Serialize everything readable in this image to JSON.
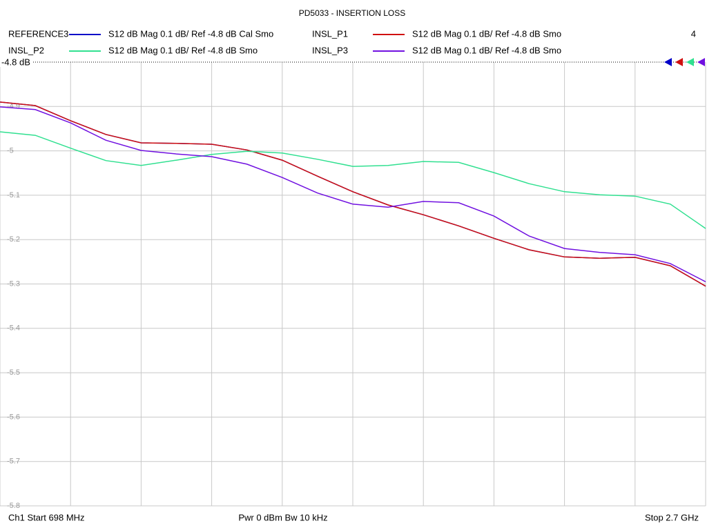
{
  "chart_data": {
    "type": "line",
    "title": "PD5033 - INSERTION LOSS",
    "channel_number": "4",
    "reference_label": "-4.8 dB",
    "footer": {
      "start": "Ch1  Start  698 MHz",
      "power": "Pwr  0 dBm  Bw  10 kHz",
      "stop": "Stop  2.7 GHz"
    },
    "x": [
      698,
      798.1,
      898.2,
      998.3,
      1098.4,
      1198.5,
      1298.6,
      1398.7,
      1498.8,
      1598.9,
      1699,
      1799.1,
      1899.2,
      1999.3,
      2099.4,
      2199.5,
      2299.6,
      2399.7,
      2499.8,
      2599.9,
      2700
    ],
    "xlim": [
      698,
      2700
    ],
    "xticks": [
      698,
      898.2,
      1098.4,
      1298.6,
      1498.8,
      1699,
      1899.2,
      2099.4,
      2299.6,
      2499.8,
      2700
    ],
    "ylim": [
      -5.8,
      -4.8
    ],
    "yticks": [
      -4.8,
      -4.9,
      -5,
      -5.1,
      -5.2,
      -5.3,
      -5.4,
      -5.5,
      -5.6,
      -5.7,
      -5.8
    ],
    "grid": true,
    "series": [
      {
        "name": "REFERENCE3",
        "description": "S12  dB Mag  0.1 dB/ Ref -4.8 dB  Cal Smo",
        "color": "#0000c8",
        "values": [
          -4.89,
          -4.898,
          -4.932,
          -4.963,
          -4.982,
          -4.983,
          -4.985,
          -4.998,
          -5.021,
          -5.057,
          -5.092,
          -5.122,
          -5.144,
          -5.169,
          -5.197,
          -5.223,
          -5.239,
          -5.242,
          -5.24,
          -5.259,
          -5.305
        ]
      },
      {
        "name": "INSL_P1",
        "description": "S12  dB Mag  0.1 dB/ Ref -4.8 dB  Smo",
        "color": "#d01010",
        "values": [
          -4.89,
          -4.898,
          -4.932,
          -4.963,
          -4.982,
          -4.983,
          -4.985,
          -4.998,
          -5.021,
          -5.057,
          -5.092,
          -5.122,
          -5.144,
          -5.169,
          -5.197,
          -5.223,
          -5.239,
          -5.242,
          -5.24,
          -5.259,
          -5.305
        ]
      },
      {
        "name": "INSL_P2",
        "description": "S12  dB Mag  0.1 dB/ Ref -4.8 dB  Smo",
        "color": "#30e090",
        "values": [
          -4.957,
          -4.965,
          -4.994,
          -5.022,
          -5.033,
          -5.021,
          -5.008,
          -5.001,
          -5.005,
          -5.019,
          -5.035,
          -5.033,
          -5.024,
          -5.026,
          -5.049,
          -5.074,
          -5.092,
          -5.099,
          -5.102,
          -5.12,
          -5.175
        ]
      },
      {
        "name": "INSL_P3",
        "description": "S12  dB Mag  0.1 dB/ Ref -4.8 dB  Smo",
        "color": "#7010e0",
        "values": [
          -4.901,
          -4.907,
          -4.937,
          -4.976,
          -4.999,
          -5.007,
          -5.013,
          -5.03,
          -5.06,
          -5.095,
          -5.12,
          -5.127,
          -5.114,
          -5.117,
          -5.147,
          -5.192,
          -5.22,
          -5.229,
          -5.234,
          -5.254,
          -5.295
        ]
      }
    ]
  }
}
